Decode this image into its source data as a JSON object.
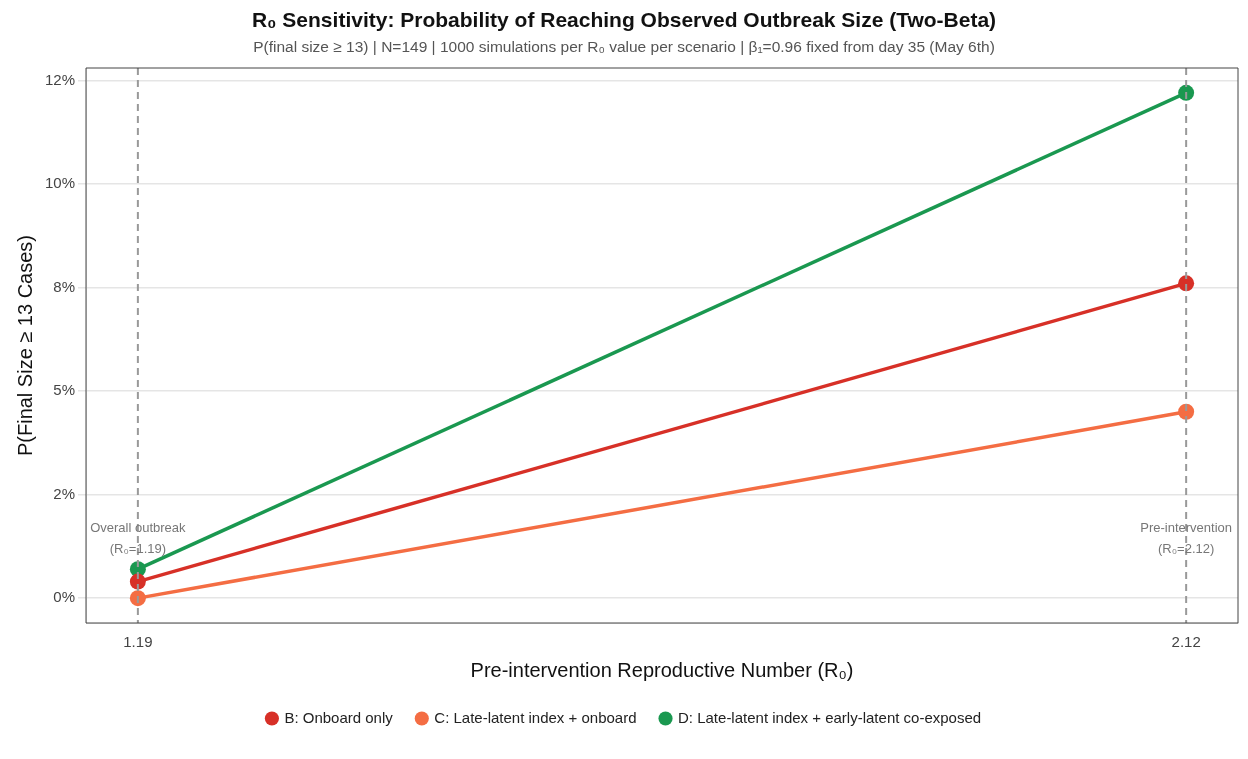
{
  "chart_data": {
    "type": "line",
    "title": "R₀ Sensitivity: Probability of Reaching Observed Outbreak Size (Two-Beta)",
    "subtitle": "P(final size ≥ 13) | N=149 | 1000 simulations per R₀ value per scenario | β₁=0.96 fixed from day 35 (May 6th)",
    "xlabel": "Pre-intervention Reproductive Number (R₀)",
    "ylabel": "P(Final Size ≥ 13 Cases)",
    "x": [
      1.19,
      2.12
    ],
    "series": [
      {
        "name": "B: Onboard only",
        "color": "#d73027",
        "values": [
          0.4,
          7.6
        ]
      },
      {
        "name": "C: Late-latent index + onboard",
        "color": "#f46d43",
        "values": [
          0,
          4.5
        ]
      },
      {
        "name": "D: Late-latent index + early-latent co-exposed",
        "color": "#1a9850",
        "values": [
          0.7,
          12.2
        ]
      }
    ],
    "xlim": [
      1.144,
      2.166
    ],
    "xticks": [
      1.19,
      2.12
    ],
    "ylim": [
      -0.6,
      12.8
    ],
    "yticks": [
      {
        "value": 0,
        "label": "0%"
      },
      {
        "value": 2.5,
        "label": "2%"
      },
      {
        "value": 5,
        "label": "5%"
      },
      {
        "value": 7.5,
        "label": "8%"
      },
      {
        "value": 10,
        "label": "10%"
      },
      {
        "value": 12.5,
        "label": "12%"
      }
    ],
    "ref_lines": [
      {
        "axis": "x",
        "value": 1.19,
        "label": "Overall outbreak\n(R₀=1.19)",
        "color": "#999999",
        "line_style": "dashed"
      },
      {
        "axis": "x",
        "value": 2.12,
        "label": "Pre-intervention\n(R₀=2.12)",
        "color": "#999999",
        "line_style": "dashed"
      }
    ],
    "grid": "y",
    "legend": "bottom",
    "marker": "circle",
    "line_style": "solid"
  }
}
